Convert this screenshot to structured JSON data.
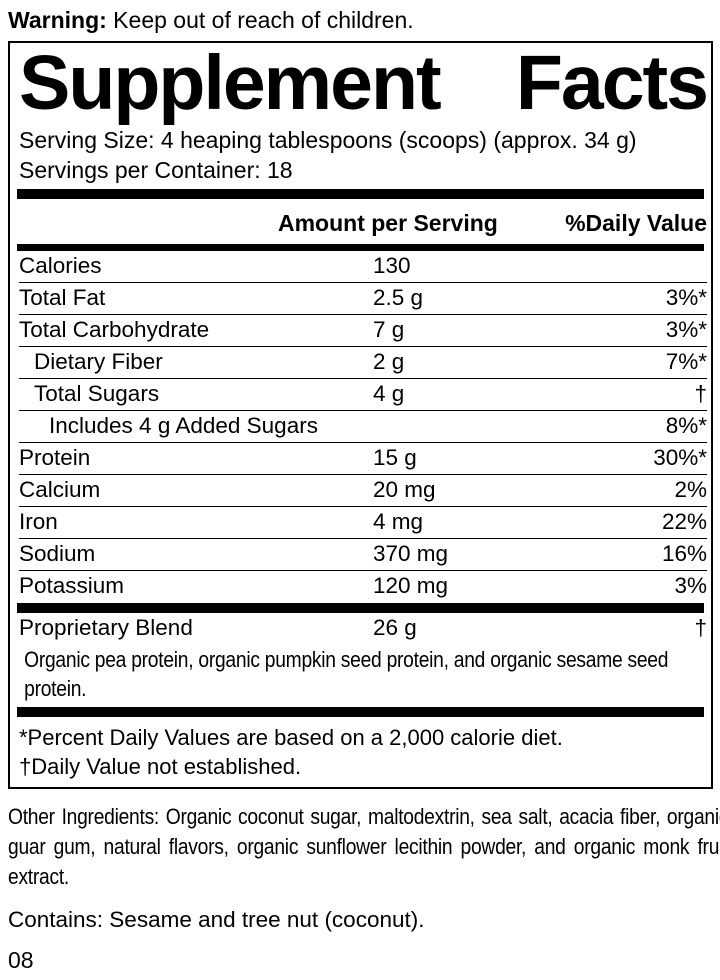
{
  "colors": {
    "text": "#000000",
    "background": "#ffffff"
  },
  "warning": {
    "label": "Warning:",
    "text": " Keep out of reach of children."
  },
  "panel": {
    "title_word1": "Supplement",
    "title_word2": "Facts",
    "serving_size": "Serving Size: 4 heaping tablespoons (scoops) (approx. 34 g)",
    "servings_per_container": "Servings per Container: 18",
    "header": {
      "amount": "Amount per Serving",
      "daily_value": "%Daily Value"
    },
    "rows": [
      {
        "name": "Calories",
        "amount": "130",
        "dv": "",
        "indent": 0
      },
      {
        "name": "Total Fat",
        "amount": "2.5 g",
        "dv": "3%*",
        "indent": 0
      },
      {
        "name": "Total Carbohydrate",
        "amount": "7 g",
        "dv": "3%*",
        "indent": 0
      },
      {
        "name": "Dietary Fiber",
        "amount": "2 g",
        "dv": "7%*",
        "indent": 1
      },
      {
        "name": "Total Sugars",
        "amount": "4 g",
        "dv": "†",
        "indent": 1
      },
      {
        "name": "Includes 4 g Added Sugars",
        "amount": "",
        "dv": "8%*",
        "indent": 2
      },
      {
        "name": "Protein",
        "amount": "15 g",
        "dv": "30%*",
        "indent": 0
      },
      {
        "name": "Calcium",
        "amount": "20 mg",
        "dv": "2%",
        "indent": 0
      },
      {
        "name": "Iron",
        "amount": "4 mg",
        "dv": "22%",
        "indent": 0
      },
      {
        "name": "Sodium",
        "amount": "370 mg",
        "dv": "16%",
        "indent": 0
      },
      {
        "name": "Potassium",
        "amount": "120 mg",
        "dv": "3%",
        "indent": 0
      }
    ],
    "proprietary": {
      "name": "Proprietary Blend",
      "amount": "26 g",
      "dv": "†",
      "description": "Organic pea protein, organic pumpkin seed protein, and organic sesame seed protein."
    },
    "footnotes": [
      "*Percent Daily Values are based on a 2,000 calorie diet.",
      "†Daily Value not established."
    ]
  },
  "other_ingredients": "Other Ingredients: Organic coconut sugar, maltodextrin, sea salt, acacia fiber, organic guar gum, natural flavors, organic sunflower lecithin powder, and organic monk fruit extract.",
  "contains": "Contains: Sesame and tree nut (coconut).",
  "code": "08"
}
